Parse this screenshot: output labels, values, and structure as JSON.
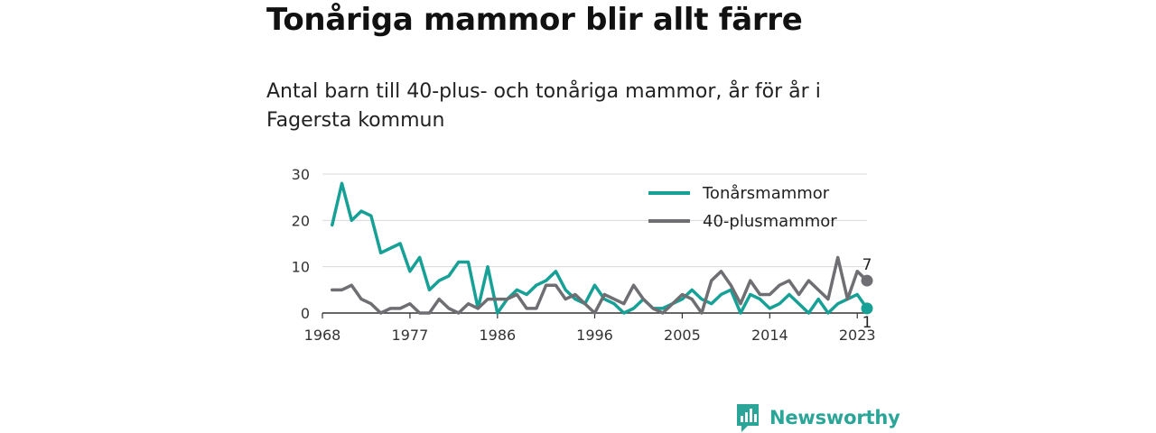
{
  "title": "Tonåriga mammor blir allt färre",
  "subtitle": "Antal barn till 40-plus- och tonåriga mammor, år för år i Fagersta kommun",
  "logo": {
    "text": "Newsworthy",
    "icon": "newsworthy-bar-chart-logo-icon"
  },
  "chart_data": {
    "type": "line",
    "x_range": [
      1968,
      2024
    ],
    "ylim": [
      0,
      30
    ],
    "yticks": [
      0,
      10,
      20,
      30
    ],
    "xticks": [
      1968,
      1977,
      1986,
      1996,
      2005,
      2014,
      2023
    ],
    "grid": true,
    "legend_position": "top-right",
    "x": [
      1969,
      1970,
      1971,
      1972,
      1973,
      1974,
      1975,
      1976,
      1977,
      1978,
      1979,
      1980,
      1981,
      1982,
      1983,
      1984,
      1985,
      1986,
      1987,
      1988,
      1989,
      1990,
      1991,
      1992,
      1993,
      1994,
      1995,
      1996,
      1997,
      1998,
      1999,
      2000,
      2001,
      2002,
      2003,
      2004,
      2005,
      2006,
      2007,
      2008,
      2009,
      2010,
      2011,
      2012,
      2013,
      2014,
      2015,
      2016,
      2017,
      2018,
      2019,
      2020,
      2021,
      2022,
      2023,
      2024
    ],
    "series": [
      {
        "name": "Tonårsmammor",
        "color": "#17a096",
        "values": [
          19,
          28,
          20,
          22,
          21,
          13,
          14,
          15,
          9,
          12,
          5,
          7,
          8,
          11,
          11,
          1,
          10,
          0,
          3,
          5,
          4,
          6,
          7,
          9,
          5,
          3,
          2,
          6,
          3,
          2,
          0,
          1,
          3,
          1,
          1,
          2,
          3,
          5,
          3,
          2,
          4,
          5,
          0,
          4,
          3,
          1,
          2,
          4,
          2,
          0,
          3,
          0,
          2,
          3,
          4,
          1
        ],
        "end_label": "1"
      },
      {
        "name": "40-plusmammor",
        "color": "#6e6e73",
        "values": [
          5,
          5,
          6,
          3,
          2,
          0,
          1,
          1,
          2,
          0,
          0,
          3,
          1,
          0,
          2,
          1,
          3,
          3,
          3,
          4,
          1,
          1,
          6,
          6,
          3,
          4,
          2,
          0,
          4,
          3,
          2,
          6,
          3,
          1,
          0,
          2,
          4,
          3,
          0,
          7,
          9,
          6,
          2,
          7,
          4,
          4,
          6,
          7,
          4,
          7,
          5,
          3,
          12,
          3,
          9,
          7
        ],
        "end_label": "7"
      }
    ]
  }
}
